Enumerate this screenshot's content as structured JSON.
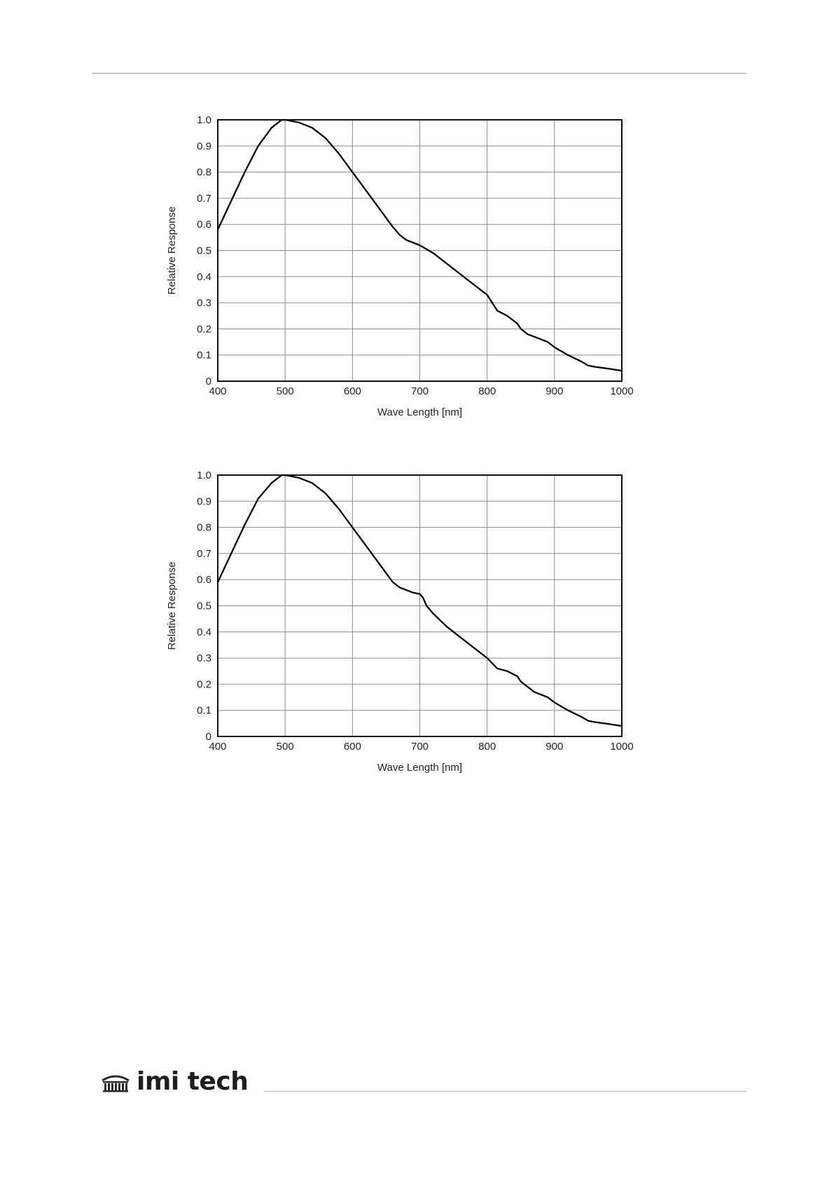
{
  "footer": {
    "logo_text": "imi tech"
  },
  "chart_data": [
    {
      "type": "line",
      "xlabel": "Wave Length [nm]",
      "ylabel": "Relative Response",
      "xlim": [
        400,
        1000
      ],
      "ylim": [
        0,
        1.0
      ],
      "xticks": [
        "400",
        "500",
        "600",
        "700",
        "800",
        "900",
        "1000"
      ],
      "yticks": [
        "0",
        "0.1",
        "0.2",
        "0.3",
        "0.4",
        "0.5",
        "0.6",
        "0.7",
        "0.8",
        "0.9",
        "1.0"
      ],
      "grid": true,
      "line_color": "#000000",
      "series": [
        {
          "x": [
            400,
            420,
            440,
            460,
            480,
            495,
            500,
            520,
            540,
            560,
            580,
            600,
            620,
            640,
            660,
            670,
            680,
            700,
            720,
            740,
            760,
            780,
            800,
            815,
            830,
            845,
            850,
            860,
            870,
            880,
            890,
            900,
            920,
            940,
            950,
            960,
            980,
            1000
          ],
          "y": [
            0.58,
            0.69,
            0.8,
            0.9,
            0.97,
            1.0,
            1.0,
            0.99,
            0.97,
            0.93,
            0.87,
            0.8,
            0.73,
            0.66,
            0.59,
            0.56,
            0.54,
            0.52,
            0.49,
            0.45,
            0.41,
            0.37,
            0.33,
            0.27,
            0.25,
            0.22,
            0.2,
            0.18,
            0.17,
            0.16,
            0.15,
            0.13,
            0.1,
            0.075,
            0.06,
            0.055,
            0.048,
            0.04
          ]
        }
      ]
    },
    {
      "type": "line",
      "xlabel": "Wave Length [nm]",
      "ylabel": "Relative Response",
      "xlim": [
        400,
        1000
      ],
      "ylim": [
        0,
        1.0
      ],
      "xticks": [
        "400",
        "500",
        "600",
        "700",
        "800",
        "900",
        "1000"
      ],
      "yticks": [
        "0",
        "0.1",
        "0.2",
        "0.3",
        "0.4",
        "0.5",
        "0.6",
        "0.7",
        "0.8",
        "0.9",
        "1.0"
      ],
      "grid": true,
      "line_color": "#000000",
      "series": [
        {
          "x": [
            400,
            420,
            440,
            460,
            480,
            495,
            500,
            520,
            540,
            560,
            580,
            600,
            620,
            640,
            660,
            670,
            680,
            690,
            700,
            705,
            710,
            720,
            740,
            760,
            780,
            800,
            815,
            830,
            845,
            850,
            860,
            870,
            880,
            890,
            900,
            920,
            940,
            950,
            960,
            980,
            1000
          ],
          "y": [
            0.59,
            0.7,
            0.81,
            0.91,
            0.97,
            1.0,
            1.0,
            0.99,
            0.97,
            0.93,
            0.87,
            0.8,
            0.73,
            0.66,
            0.59,
            0.57,
            0.56,
            0.55,
            0.545,
            0.53,
            0.5,
            0.47,
            0.42,
            0.38,
            0.34,
            0.3,
            0.26,
            0.25,
            0.23,
            0.21,
            0.19,
            0.17,
            0.16,
            0.15,
            0.13,
            0.1,
            0.075,
            0.06,
            0.055,
            0.048,
            0.04
          ]
        }
      ]
    }
  ]
}
